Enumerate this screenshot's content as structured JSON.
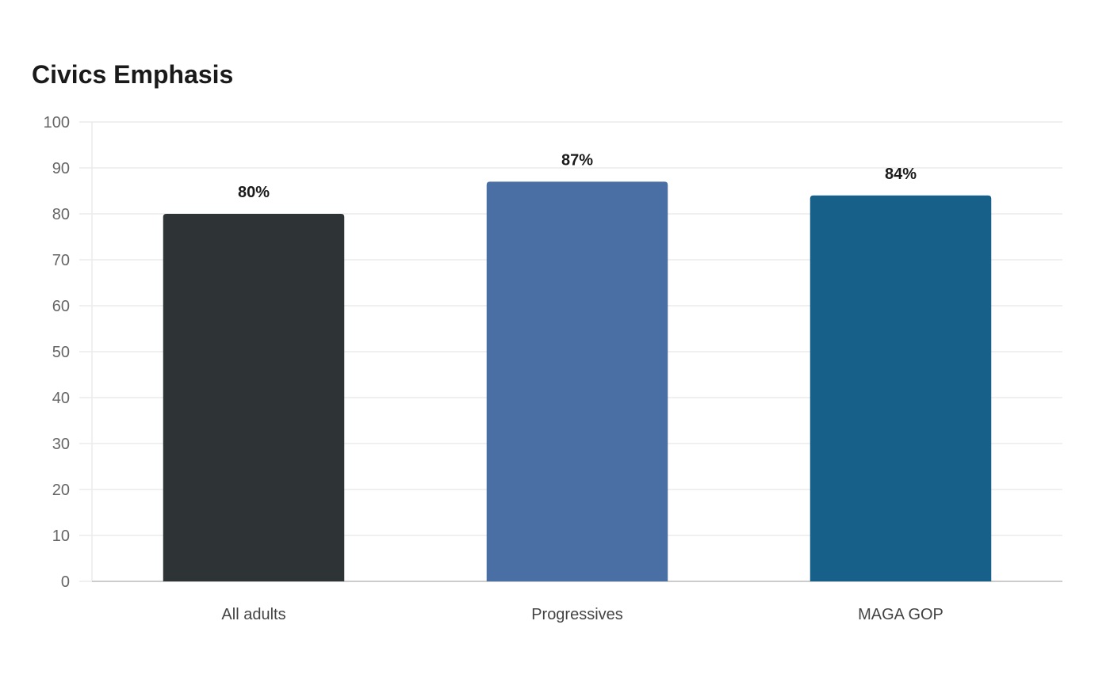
{
  "chart_data": {
    "type": "bar",
    "title": "Civics Emphasis",
    "categories": [
      "All adults",
      "Progressives",
      "MAGA GOP"
    ],
    "values": [
      80,
      87,
      84
    ],
    "value_labels": [
      "80%",
      "87%",
      "84%"
    ],
    "colors": [
      "#2e3436",
      "#4a6fa5",
      "#17608a"
    ],
    "ylim": [
      0,
      100
    ],
    "yticks": [
      "0",
      "10",
      "20",
      "30",
      "40",
      "50",
      "60",
      "70",
      "80",
      "90",
      "100"
    ],
    "grid": true,
    "legend": "none"
  },
  "style": {
    "grid_color": "#ebebeb",
    "axis_color": "#cccccc"
  }
}
